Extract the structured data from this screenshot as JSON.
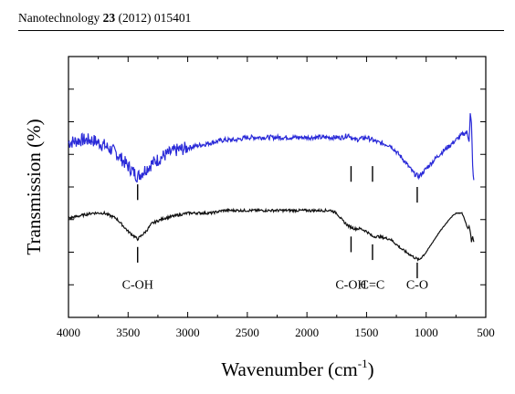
{
  "header": {
    "journal": "Nanotechnology",
    "volume": "23",
    "rest": "(2012) 015401"
  },
  "chart_data": {
    "type": "line",
    "xlabel_base": "Wavenumber (cm",
    "xlabel_sup": "-1",
    "xlabel_close": ")",
    "ylabel": "Transmission (%)",
    "xlim": [
      4000,
      500
    ],
    "x_reversed": true,
    "ylim": [
      0,
      100
    ],
    "x_ticks": [
      4000,
      3500,
      3000,
      2500,
      2000,
      1500,
      1000,
      500
    ],
    "series": [
      {
        "color": "#2a2ad8",
        "baseline": 68,
        "points": [
          [
            4000,
            67
          ],
          [
            3900,
            68
          ],
          [
            3800,
            68
          ],
          [
            3700,
            66
          ],
          [
            3600,
            63
          ],
          [
            3500,
            58
          ],
          [
            3420,
            54
          ],
          [
            3300,
            59
          ],
          [
            3200,
            62
          ],
          [
            3100,
            64
          ],
          [
            3000,
            65
          ],
          [
            2900,
            66
          ],
          [
            2800,
            67
          ],
          [
            2700,
            68
          ],
          [
            2600,
            68
          ],
          [
            2500,
            69
          ],
          [
            2400,
            69
          ],
          [
            2300,
            69
          ],
          [
            2200,
            69
          ],
          [
            2100,
            69
          ],
          [
            2000,
            69
          ],
          [
            1900,
            69
          ],
          [
            1800,
            69
          ],
          [
            1700,
            69
          ],
          [
            1650,
            70
          ],
          [
            1600,
            68
          ],
          [
            1500,
            69
          ],
          [
            1400,
            67
          ],
          [
            1300,
            66
          ],
          [
            1200,
            61
          ],
          [
            1100,
            55
          ],
          [
            1060,
            54
          ],
          [
            1000,
            57
          ],
          [
            900,
            62
          ],
          [
            800,
            66
          ],
          [
            700,
            70
          ],
          [
            660,
            71
          ],
          [
            640,
            68
          ],
          [
            630,
            78
          ],
          [
            620,
            74
          ],
          [
            610,
            58
          ],
          [
            600,
            52
          ]
        ],
        "noise_below": 3000,
        "noise_amp": 2.6
      },
      {
        "color": "#111111",
        "baseline": 40,
        "points": [
          [
            4000,
            38
          ],
          [
            3900,
            39
          ],
          [
            3800,
            40
          ],
          [
            3700,
            40
          ],
          [
            3600,
            38
          ],
          [
            3500,
            33
          ],
          [
            3420,
            30
          ],
          [
            3350,
            33
          ],
          [
            3300,
            36
          ],
          [
            3200,
            38
          ],
          [
            3100,
            39
          ],
          [
            3000,
            40
          ],
          [
            2900,
            40
          ],
          [
            2800,
            40
          ],
          [
            2700,
            41
          ],
          [
            2600,
            41
          ],
          [
            2500,
            41
          ],
          [
            2400,
            41
          ],
          [
            2300,
            41
          ],
          [
            2200,
            41
          ],
          [
            2100,
            41
          ],
          [
            2000,
            41
          ],
          [
            1900,
            41
          ],
          [
            1800,
            41
          ],
          [
            1750,
            40
          ],
          [
            1700,
            37
          ],
          [
            1650,
            35
          ],
          [
            1600,
            34
          ],
          [
            1550,
            34
          ],
          [
            1500,
            33
          ],
          [
            1450,
            31
          ],
          [
            1400,
            31
          ],
          [
            1300,
            30
          ],
          [
            1200,
            26
          ],
          [
            1100,
            23
          ],
          [
            1060,
            22
          ],
          [
            1000,
            25
          ],
          [
            900,
            32
          ],
          [
            800,
            38
          ],
          [
            750,
            40
          ],
          [
            700,
            40
          ],
          [
            680,
            38
          ],
          [
            660,
            35
          ],
          [
            650,
            34
          ],
          [
            640,
            35
          ],
          [
            630,
            33
          ],
          [
            620,
            29
          ],
          [
            610,
            31
          ],
          [
            600,
            29
          ]
        ],
        "noise_below": 1000,
        "noise_amp": 0.5
      }
    ],
    "markers": [
      {
        "series": 0,
        "x": 3420,
        "top": 51,
        "bottom": 45
      },
      {
        "series": 0,
        "x": 1630,
        "top": 58,
        "bottom": 52
      },
      {
        "series": 0,
        "x": 1450,
        "top": 58,
        "bottom": 52
      },
      {
        "series": 0,
        "x": 1075,
        "top": 50,
        "bottom": 44
      },
      {
        "series": 1,
        "x": 3420,
        "top": 27,
        "bottom": 21
      },
      {
        "series": 1,
        "x": 1630,
        "top": 31,
        "bottom": 25
      },
      {
        "series": 1,
        "x": 1450,
        "top": 28,
        "bottom": 22
      },
      {
        "series": 1,
        "x": 1075,
        "top": 21,
        "bottom": 15
      }
    ],
    "annotations": [
      {
        "text": "C-OH",
        "x": 3420,
        "y": 11
      },
      {
        "text": "C-OH",
        "x": 1630,
        "y": 11
      },
      {
        "text": "C=C",
        "x": 1450,
        "y": 11
      },
      {
        "text": "C-O",
        "x": 1075,
        "y": 11
      }
    ]
  }
}
